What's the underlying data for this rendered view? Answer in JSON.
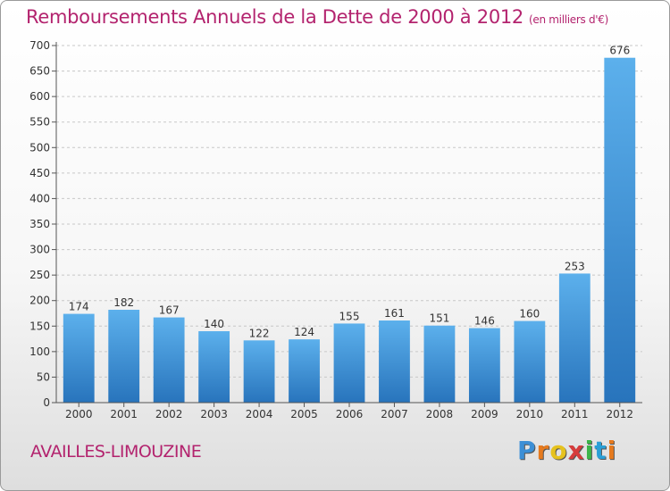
{
  "title": "Remboursements Annuels de la Dette de 2000 à 2012",
  "unit_note": "(en milliers d'€)",
  "commune": "AVAILLES-LIMOUZINE",
  "logo": {
    "letters": [
      "P",
      "r",
      "o",
      "x",
      "i",
      "t",
      "i"
    ],
    "colors": [
      "#3c8fd6",
      "#e67a1e",
      "#e6c21e",
      "#d63c3c",
      "#3cb54a",
      "#2a9fd6",
      "#e67a1e"
    ]
  },
  "chart_data": {
    "type": "bar",
    "title": "Remboursements Annuels de la Dette de 2000 à 2012",
    "categories": [
      "2000",
      "2001",
      "2002",
      "2003",
      "2004",
      "2005",
      "2006",
      "2007",
      "2008",
      "2009",
      "2010",
      "2011",
      "2012"
    ],
    "values": [
      174,
      182,
      167,
      140,
      122,
      124,
      155,
      161,
      151,
      146,
      160,
      253,
      676
    ],
    "ylim": [
      0,
      700
    ],
    "yticks": [
      0,
      50,
      100,
      150,
      200,
      250,
      300,
      350,
      400,
      450,
      500,
      550,
      600,
      650,
      700
    ],
    "xlabel": "",
    "ylabel": "",
    "grid": true,
    "colors": {
      "bar_light": "#5aaae8",
      "bar_dark": "#2a78c0",
      "grid": "#c8c8c8",
      "axis": "#555555"
    }
  }
}
